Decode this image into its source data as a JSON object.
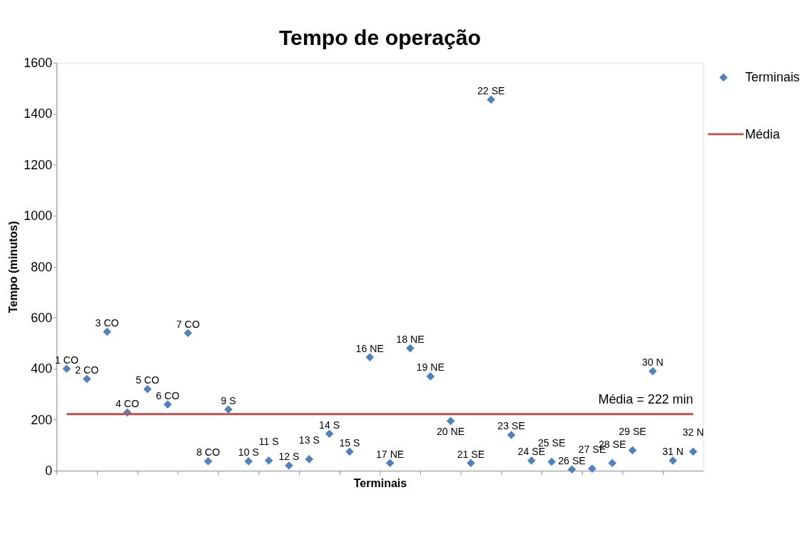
{
  "chart_data": {
    "type": "scatter",
    "title": "Tempo de operação",
    "xlabel": "Terminais",
    "ylabel": "Tempo (minutos)",
    "categories": [
      "1 CO",
      "2 CO",
      "3 CO",
      "4 CO",
      "5 CO",
      "6 CO",
      "7 CO",
      "8 CO",
      "9 S",
      "10 S",
      "11 S",
      "12 S",
      "13 S",
      "14 S",
      "15 S",
      "16 NE",
      "17 NE",
      "18 NE",
      "19 NE",
      "20 NE",
      "21 SE",
      "22 SE",
      "23 SE",
      "24 SE",
      "25 SE",
      "26 SE",
      "27 SE",
      "28 SE",
      "29 SE",
      "30 N",
      "31 N",
      "32 N"
    ],
    "series": [
      {
        "name": "Terminais",
        "color": "#4f81bd",
        "values": [
          400,
          360,
          545,
          228,
          320,
          260,
          540,
          37,
          240,
          37,
          40,
          20,
          45,
          145,
          75,
          445,
          30,
          480,
          370,
          195,
          30,
          1455,
          140,
          40,
          35,
          5,
          8,
          30,
          80,
          390,
          40,
          75
        ]
      },
      {
        "name": "Média",
        "type": "line",
        "marker": "none",
        "color": "#c0504d",
        "values": [
          222,
          222,
          222,
          222,
          222,
          222,
          222,
          222,
          222,
          222,
          222,
          222,
          222,
          222,
          222,
          222,
          222,
          222,
          222,
          222,
          222,
          222,
          222,
          222,
          222,
          222,
          222,
          222,
          222,
          222,
          222,
          222
        ]
      }
    ],
    "annotations": [
      "Média = 222 min"
    ],
    "ylim": [
      0,
      1600
    ],
    "yticks": [
      0,
      200,
      400,
      600,
      800,
      1000,
      1200,
      1400,
      1600
    ],
    "marker": "diamond",
    "legend": "top right",
    "grid": false,
    "tick_labels": "y"
  }
}
